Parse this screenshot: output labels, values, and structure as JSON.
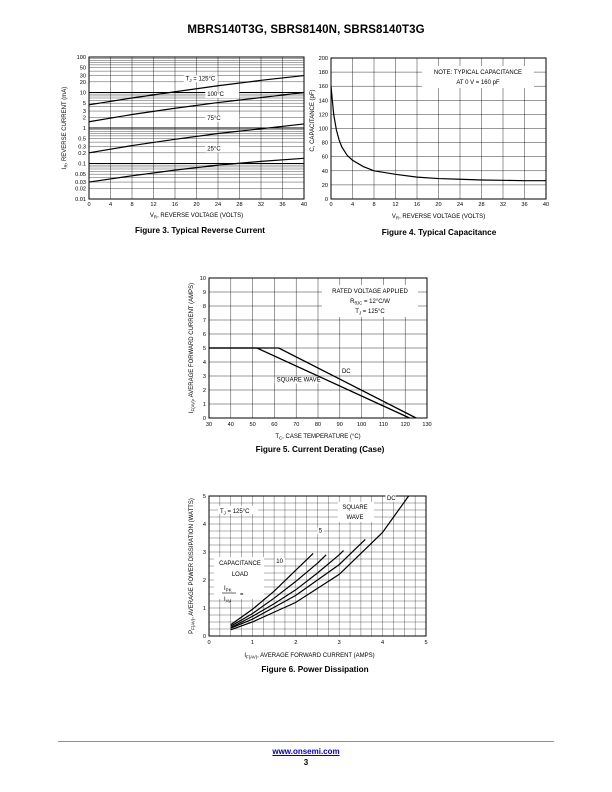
{
  "header": {
    "title": "MBRS140T3G, SBRS8140N,  SBRS8140T3G"
  },
  "figures": [
    {
      "id": "fig3",
      "caption": "Figure 3. Typical Reverse Current"
    },
    {
      "id": "fig4",
      "caption": "Figure 4. Typical Capacitance"
    },
    {
      "id": "fig5",
      "caption": "Figure 5. Current Derating (Case)"
    },
    {
      "id": "fig6",
      "caption": "Figure 6. Power Dissipation"
    }
  ],
  "chart_data": [
    {
      "type": "line",
      "id": "fig3",
      "xlabel_main": "V",
      "xlabel_sub": "R",
      "xlabel_rest": ", REVERSE VOLTAGE (VOLTS)",
      "ylabel_main": "I",
      "ylabel_sub": "R",
      "ylabel_rest": ", REVERSE CURRENT (mA)",
      "xlim": [
        0,
        40
      ],
      "ylim": [
        0.01,
        100
      ],
      "yscale": "log",
      "xticks": [
        "0",
        "4",
        "8",
        "12",
        "16",
        "20",
        "24",
        "28",
        "32",
        "36",
        "40"
      ],
      "yticks": [
        {
          "v": 100,
          "t": "100"
        },
        {
          "v": 50,
          "t": "50"
        },
        {
          "v": 30,
          "t": "30"
        },
        {
          "v": 20,
          "t": "20"
        },
        {
          "v": 10,
          "t": "10"
        },
        {
          "v": 5,
          "t": "5"
        },
        {
          "v": 3,
          "t": "3"
        },
        {
          "v": 2,
          "t": "2"
        },
        {
          "v": 1,
          "t": "1"
        },
        {
          "v": 0.5,
          "t": "0.5"
        },
        {
          "v": 0.3,
          "t": "0.3"
        },
        {
          "v": 0.2,
          "t": "0.2"
        },
        {
          "v": 0.1,
          "t": "0.1"
        },
        {
          "v": 0.05,
          "t": "0.05"
        },
        {
          "v": 0.03,
          "t": "0.03"
        },
        {
          "v": 0.02,
          "t": "0.02"
        },
        {
          "v": 0.01,
          "t": "0.01"
        }
      ],
      "series": [
        {
          "label": "T",
          "label_sub": "J",
          "label_rest": " = 125°C",
          "lx": 18,
          "ly": 22,
          "x": [
            0,
            8,
            16,
            24,
            32,
            40
          ],
          "y": [
            4.5,
            7,
            10.5,
            15.5,
            22,
            30
          ]
        },
        {
          "label": "100°C",
          "label_sub": "",
          "label_rest": "",
          "lx": 22,
          "ly": 8,
          "x": [
            0,
            8,
            16,
            24,
            32,
            40
          ],
          "y": [
            1.5,
            2.4,
            3.6,
            5.2,
            7.2,
            10
          ]
        },
        {
          "label": "75°C",
          "label_sub": "",
          "label_rest": "",
          "lx": 22,
          "ly": 1.7,
          "x": [
            0,
            8,
            16,
            24,
            32,
            40
          ],
          "y": [
            0.2,
            0.32,
            0.48,
            0.7,
            0.95,
            1.3
          ]
        },
        {
          "label": "25°C",
          "label_sub": "",
          "label_rest": "",
          "lx": 22,
          "ly": 0.23,
          "x": [
            0,
            8,
            16,
            24,
            32,
            40
          ],
          "y": [
            0.03,
            0.045,
            0.065,
            0.09,
            0.115,
            0.14
          ]
        }
      ]
    },
    {
      "type": "line",
      "id": "fig4",
      "xlabel_main": "V",
      "xlabel_sub": "R",
      "xlabel_rest": ", REVERSE VOLTAGE (VOLTS)",
      "ylabel_main": "C, CAPACITANCE (pF)",
      "ylabel_sub": "",
      "ylabel_rest": "",
      "xlim": [
        0,
        40
      ],
      "ylim": [
        0,
        200
      ],
      "xticks": [
        "0",
        "4",
        "8",
        "12",
        "16",
        "20",
        "24",
        "28",
        "32",
        "36",
        "40"
      ],
      "yticks": [
        "0",
        "20",
        "40",
        "60",
        "80",
        "100",
        "120",
        "140",
        "160",
        "180",
        "200"
      ],
      "note": [
        "NOTE: TYPICAL CAPACITANCE",
        "AT 0 V = 160 pF"
      ],
      "series": [
        {
          "x": [
            0,
            0.5,
            1,
            1.5,
            2,
            3,
            4,
            6,
            8,
            12,
            16,
            20,
            24,
            28,
            32,
            36,
            40
          ],
          "y": [
            160,
            120,
            98,
            84,
            74,
            62,
            55,
            46,
            40,
            35,
            31,
            29,
            28,
            27,
            26.5,
            26,
            26
          ]
        }
      ]
    },
    {
      "type": "line",
      "id": "fig5",
      "xlabel_main": "T",
      "xlabel_sub": "C",
      "xlabel_rest": ", CASE TEMPERATURE (°C)",
      "ylabel_main": "I",
      "ylabel_sub": "F(AV)",
      "ylabel_rest": ", AVERAGE FORWARD CURRENT (AMPS)",
      "xlim": [
        30,
        130
      ],
      "ylim": [
        0,
        10
      ],
      "xticks": [
        "30",
        "40",
        "50",
        "60",
        "70",
        "80",
        "90",
        "100",
        "110",
        "120",
        "130"
      ],
      "yticks": [
        "0",
        "1",
        "2",
        "3",
        "4",
        "5",
        "6",
        "7",
        "8",
        "9",
        "10"
      ],
      "note": [
        {
          "main": "RATED VOLTAGE APPLIED",
          "sub": "",
          "rest": ""
        },
        {
          "main": "R",
          "sub": "θJC",
          "rest": " = 12°C/W"
        },
        {
          "main": "T",
          "sub": "J",
          "rest": " = 125°C"
        }
      ],
      "series": [
        {
          "name": "DC",
          "lx": 91,
          "ly": 3.2,
          "x": [
            30,
            62,
            125
          ],
          "y": [
            5,
            5,
            0
          ]
        },
        {
          "name": "SQUARE WAVE",
          "lx": 61,
          "ly": 2.6,
          "x": [
            30,
            52,
            122
          ],
          "y": [
            5,
            5,
            0
          ]
        }
      ]
    },
    {
      "type": "line",
      "id": "fig6",
      "xlabel_main": "I",
      "xlabel_sub": "F(AV)",
      "xlabel_rest": ", AVERAGE FORWARD CURRENT (AMPS)",
      "ylabel_main": "P",
      "ylabel_sub": "F(AV)",
      "ylabel_rest": ", AVERAGE POWER DISSIPATION (WATTS)",
      "xlim": [
        0,
        5
      ],
      "ylim": [
        0,
        5
      ],
      "xticks": [
        "0",
        "1",
        "2",
        "3",
        "4",
        "5"
      ],
      "yticks": [
        "0",
        "1",
        "2",
        "3",
        "4",
        "5"
      ],
      "tj_note": {
        "main": "T",
        "sub": "J",
        "rest": " = 125°C"
      },
      "cap_note": {
        "line1": "CAPACITANCE",
        "line2": "LOAD",
        "ipk": "I",
        "ipk_sub": "PK",
        "iav": "I",
        "iav_sub": "AV",
        "eq": "=",
        "val": "20"
      },
      "square_note": [
        "SQUARE",
        "WAVE"
      ],
      "series": [
        {
          "name": "20",
          "lx": 0.92,
          "ly": 2.08,
          "x": [
            0.5,
            1,
            1.5,
            2,
            2.4
          ],
          "y": [
            0.4,
            0.95,
            1.6,
            2.35,
            2.95
          ]
        },
        {
          "name": "10",
          "lx": 1.55,
          "ly": 2.6,
          "x": [
            0.5,
            1,
            1.5,
            2,
            2.5,
            2.7
          ],
          "y": [
            0.35,
            0.8,
            1.35,
            1.95,
            2.6,
            2.9
          ]
        },
        {
          "name": "5",
          "lx": 2.53,
          "ly": 3.7,
          "x": [
            0.5,
            1,
            1.5,
            2,
            2.5,
            3,
            3.1
          ],
          "y": [
            0.3,
            0.7,
            1.15,
            1.65,
            2.25,
            2.9,
            3.05
          ]
        },
        {
          "name": "π",
          "lx": 3.0,
          "ly": 4.2,
          "x": [
            0.5,
            1,
            2,
            3,
            3.6
          ],
          "y": [
            0.28,
            0.6,
            1.45,
            2.55,
            3.45
          ]
        },
        {
          "name": "DC",
          "lx": 4.1,
          "ly": 4.85,
          "x": [
            0.5,
            1,
            2,
            3,
            4,
            4.6
          ],
          "y": [
            0.22,
            0.5,
            1.2,
            2.2,
            3.7,
            5.0
          ]
        }
      ]
    }
  ],
  "footer": {
    "url": "www.onsemi.com",
    "page": "3"
  }
}
